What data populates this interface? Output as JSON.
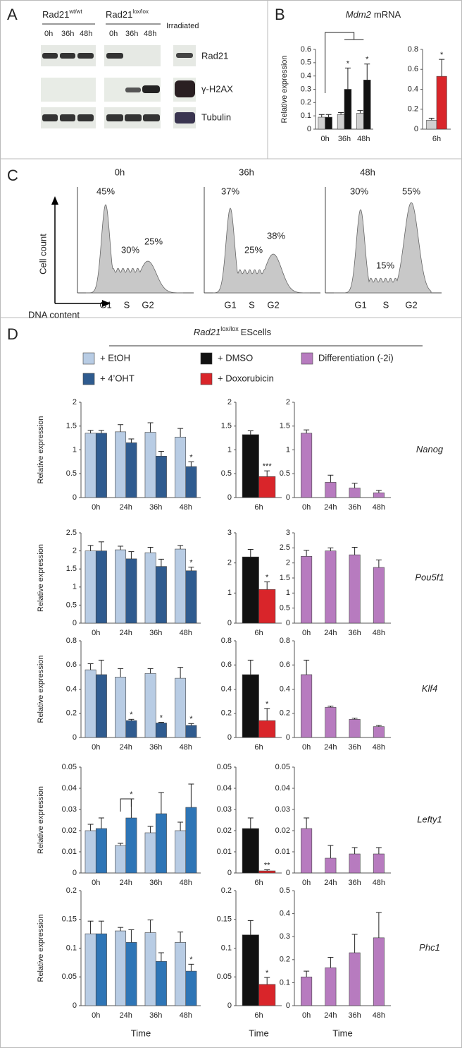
{
  "panels": [
    "A",
    "B",
    "C",
    "D"
  ],
  "blot": {
    "groups": [
      {
        "gene": "Rad21",
        "sup": "wt/wt",
        "times": [
          "0h",
          "36h",
          "48h"
        ]
      },
      {
        "gene": "Rad21",
        "sup": "lox/lox",
        "times": [
          "0h",
          "36h",
          "48h"
        ]
      }
    ],
    "control": "Irradiated",
    "rows": [
      "Rad21",
      "γ-H2AX",
      "Tubulin"
    ]
  },
  "flow": {
    "ylabel": "Cell count",
    "xlabel": "DNA content",
    "phases": [
      "G1",
      "S",
      "G2"
    ],
    "panels": [
      {
        "time": "0h",
        "peaks": [
          "45%",
          "30%",
          "25%"
        ]
      },
      {
        "time": "36h",
        "peaks": [
          "37%",
          "25%",
          "38%"
        ]
      },
      {
        "time": "48h",
        "peaks": [
          "30%",
          "15%",
          "55%"
        ]
      }
    ]
  },
  "header": {
    "gene": "Rad21",
    "sup": "lox/lox",
    "text": "EScells"
  },
  "chart_data": [
    {
      "type": "bar",
      "title": {
        "gene": "Mdm2",
        "text": "mRNA"
      },
      "ylabel": "Relative expression",
      "categories": [
        "0h",
        "36h",
        "48h"
      ],
      "ylim": [
        0,
        0.6
      ],
      "yticks": [
        0,
        0.1,
        0.2,
        0.3,
        0.4,
        0.5,
        0.6
      ],
      "series": [
        {
          "color": "#d0d0d0",
          "values": [
            0.09,
            0.11,
            0.12
          ],
          "errors": [
            0.02,
            0.015,
            0.02
          ]
        },
        {
          "color": "#111111",
          "values": [
            0.09,
            0.3,
            0.37
          ],
          "errors": [
            0.02,
            0.16,
            0.12
          ],
          "marks": [
            null,
            "*",
            "*"
          ]
        }
      ]
    },
    {
      "type": "bar",
      "categories": [
        "6h"
      ],
      "ylim": [
        0,
        0.8
      ],
      "yticks": [
        0,
        0.2,
        0.4,
        0.6,
        0.8
      ],
      "series": [
        {
          "color": "#d0d0d0",
          "values": [
            0.09
          ],
          "errors": [
            0.02
          ]
        },
        {
          "color": "#d9252a",
          "values": [
            0.53
          ],
          "errors": [
            0.17
          ],
          "marks": [
            "*"
          ]
        }
      ]
    },
    {
      "type": "bar",
      "ylabel": "Relative expression",
      "categories": [
        "0h",
        "24h",
        "36h",
        "48h"
      ],
      "ylim": [
        0,
        2
      ],
      "yticks": [
        0,
        0.5,
        1,
        1.5,
        2
      ],
      "series": [
        {
          "name": "+ EtOH",
          "color": "#b8cce4",
          "values": [
            1.35,
            1.38,
            1.37,
            1.27
          ],
          "errors": [
            0.06,
            0.15,
            0.2,
            0.18
          ]
        },
        {
          "name": "+ 4’OHT",
          "color": "#2f5b8f",
          "values": [
            1.35,
            1.15,
            0.87,
            0.65
          ],
          "errors": [
            0.06,
            0.08,
            0.1,
            0.1
          ],
          "marks": [
            null,
            null,
            null,
            "*"
          ]
        }
      ]
    },
    {
      "type": "bar",
      "categories": [
        "6h"
      ],
      "ylim": [
        0,
        2
      ],
      "yticks": [
        0,
        0.5,
        1,
        1.5,
        2
      ],
      "series": [
        {
          "name": "+ DMSO",
          "color": "#111111",
          "values": [
            1.32
          ],
          "errors": [
            0.08
          ]
        },
        {
          "name": "+ Doxorubicin",
          "color": "#d9252a",
          "values": [
            0.44
          ],
          "errors": [
            0.12
          ],
          "marks": [
            "***"
          ]
        }
      ]
    },
    {
      "type": "bar",
      "gene": "Nanog",
      "categories": [
        "0h",
        "24h",
        "36h",
        "48h"
      ],
      "ylim": [
        0,
        2
      ],
      "yticks": [
        0,
        0.5,
        1,
        1.5,
        2
      ],
      "series": [
        {
          "name": "Differentiation (-2i)",
          "color": "#b77bbf",
          "values": [
            1.35,
            0.32,
            0.2,
            0.1
          ],
          "errors": [
            0.07,
            0.15,
            0.1,
            0.05
          ]
        }
      ]
    },
    {
      "type": "bar",
      "ylabel": "Relative expression",
      "categories": [
        "0h",
        "24h",
        "36h",
        "48h"
      ],
      "ylim": [
        0,
        2.5
      ],
      "yticks": [
        0,
        0.5,
        1,
        1.5,
        2,
        2.5
      ],
      "series": [
        {
          "color": "#b8cce4",
          "values": [
            2,
            2.03,
            1.95,
            2.05
          ],
          "errors": [
            0.15,
            0.1,
            0.15,
            0.1
          ]
        },
        {
          "color": "#2f5b8f",
          "values": [
            2,
            1.78,
            1.57,
            1.45
          ],
          "errors": [
            0.25,
            0.2,
            0.2,
            0.1
          ],
          "marks": [
            null,
            null,
            null,
            "*"
          ]
        }
      ]
    },
    {
      "type": "bar",
      "categories": [
        "6h"
      ],
      "ylim": [
        0,
        3
      ],
      "yticks": [
        0,
        1,
        2,
        3
      ],
      "series": [
        {
          "color": "#111111",
          "values": [
            2.2
          ],
          "errors": [
            0.25
          ]
        },
        {
          "color": "#d9252a",
          "values": [
            1.12
          ],
          "errors": [
            0.25
          ],
          "marks": [
            "*"
          ]
        }
      ]
    },
    {
      "type": "bar",
      "gene": "Pou5f1",
      "categories": [
        "0h",
        "24h",
        "36h",
        "48h"
      ],
      "ylim": [
        0,
        3
      ],
      "yticks": [
        0,
        0.5,
        1,
        1.5,
        2,
        2.5,
        3
      ],
      "series": [
        {
          "color": "#b77bbf",
          "values": [
            2.22,
            2.4,
            2.27,
            1.85
          ],
          "errors": [
            0.2,
            0.1,
            0.25,
            0.25
          ]
        }
      ]
    },
    {
      "type": "bar",
      "ylabel": "Relative expression",
      "categories": [
        "0h",
        "24h",
        "36h",
        "48h"
      ],
      "ylim": [
        0,
        0.8
      ],
      "yticks": [
        0,
        0.2,
        0.4,
        0.6,
        0.8
      ],
      "series": [
        {
          "color": "#b8cce4",
          "values": [
            0.56,
            0.5,
            0.53,
            0.49
          ],
          "errors": [
            0.05,
            0.07,
            0.04,
            0.09
          ]
        },
        {
          "color": "#2f5b8f",
          "values": [
            0.52,
            0.14,
            0.12,
            0.1
          ],
          "errors": [
            0.12,
            0.01,
            0.005,
            0.015
          ],
          "marks": [
            null,
            "*",
            "*",
            "*"
          ]
        }
      ]
    },
    {
      "type": "bar",
      "categories": [
        "6h"
      ],
      "ylim": [
        0,
        0.8
      ],
      "yticks": [
        0,
        0.2,
        0.4,
        0.6,
        0.8
      ],
      "series": [
        {
          "color": "#111111",
          "values": [
            0.52
          ],
          "errors": [
            0.12
          ]
        },
        {
          "color": "#d9252a",
          "values": [
            0.14
          ],
          "errors": [
            0.1
          ],
          "marks": [
            "*"
          ]
        }
      ]
    },
    {
      "type": "bar",
      "gene": "Klf4",
      "categories": [
        "0h",
        "24h",
        "36h",
        "48h"
      ],
      "ylim": [
        0,
        0.8
      ],
      "yticks": [
        0,
        0.2,
        0.4,
        0.6,
        0.8
      ],
      "series": [
        {
          "color": "#b77bbf",
          "values": [
            0.52,
            0.25,
            0.15,
            0.09
          ],
          "errors": [
            0.12,
            0.01,
            0.01,
            0.01
          ]
        }
      ]
    },
    {
      "type": "bar",
      "ylabel": "Relative expression",
      "categories": [
        "0h",
        "24h",
        "36h",
        "48h"
      ],
      "ylim": [
        0,
        0.05
      ],
      "yticks": [
        0,
        0.01,
        0.02,
        0.03,
        0.04,
        0.05
      ],
      "series": [
        {
          "color": "#b8cce4",
          "values": [
            0.02,
            0.013,
            0.019,
            0.02
          ],
          "errors": [
            0.003,
            0.001,
            0.003,
            0.004
          ]
        },
        {
          "color": "#2e75b6",
          "values": [
            0.021,
            0.026,
            0.028,
            0.031
          ],
          "errors": [
            0.005,
            0.009,
            0.01,
            0.011
          ],
          "marks": [
            null,
            "*",
            null,
            null
          ]
        }
      ]
    },
    {
      "type": "bar",
      "categories": [
        "6h"
      ],
      "ylim": [
        0,
        0.05
      ],
      "yticks": [
        0,
        0.01,
        0.02,
        0.03,
        0.04,
        0.05
      ],
      "series": [
        {
          "color": "#111111",
          "values": [
            0.021
          ],
          "errors": [
            0.005
          ]
        },
        {
          "color": "#d9252a",
          "values": [
            0.001
          ],
          "errors": [
            0.0005
          ],
          "marks": [
            "**"
          ]
        }
      ]
    },
    {
      "type": "bar",
      "gene": "Lefty1",
      "categories": [
        "0h",
        "24h",
        "36h",
        "48h"
      ],
      "ylim": [
        0,
        0.05
      ],
      "yticks": [
        0,
        0.01,
        0.02,
        0.03,
        0.04,
        0.05
      ],
      "series": [
        {
          "color": "#b77bbf",
          "values": [
            0.021,
            0.007,
            0.009,
            0.009
          ],
          "errors": [
            0.005,
            0.006,
            0.003,
            0.003
          ]
        }
      ]
    },
    {
      "type": "bar",
      "ylabel": "Relative expression",
      "xlabel": "Time",
      "categories": [
        "0h",
        "24h",
        "36h",
        "48h"
      ],
      "ylim": [
        0,
        0.2
      ],
      "yticks": [
        0,
        0.05,
        0.1,
        0.15,
        0.2
      ],
      "series": [
        {
          "color": "#b8cce4",
          "values": [
            0.125,
            0.13,
            0.127,
            0.11
          ],
          "errors": [
            0.022,
            0.006,
            0.022,
            0.018
          ]
        },
        {
          "color": "#2e75b6",
          "values": [
            0.125,
            0.11,
            0.077,
            0.06
          ],
          "errors": [
            0.022,
            0.022,
            0.015,
            0.012
          ],
          "marks": [
            null,
            null,
            null,
            "*"
          ]
        }
      ]
    },
    {
      "type": "bar",
      "xlabel": "Time",
      "categories": [
        "6h"
      ],
      "ylim": [
        0,
        0.2
      ],
      "yticks": [
        0,
        0.05,
        0.1,
        0.15,
        0.2
      ],
      "series": [
        {
          "color": "#111111",
          "values": [
            0.123
          ],
          "errors": [
            0.025
          ]
        },
        {
          "color": "#d9252a",
          "values": [
            0.037
          ],
          "errors": [
            0.012
          ],
          "marks": [
            "*"
          ]
        }
      ]
    },
    {
      "type": "bar",
      "gene": "Phc1",
      "xlabel": "Time",
      "categories": [
        "0h",
        "24h",
        "36h",
        "48h"
      ],
      "ylim": [
        0,
        0.5
      ],
      "yticks": [
        0,
        0.1,
        0.2,
        0.3,
        0.4,
        0.5
      ],
      "series": [
        {
          "color": "#b77bbf",
          "values": [
            0.125,
            0.165,
            0.23,
            0.295
          ],
          "errors": [
            0.025,
            0.045,
            0.08,
            0.11
          ]
        }
      ]
    }
  ]
}
